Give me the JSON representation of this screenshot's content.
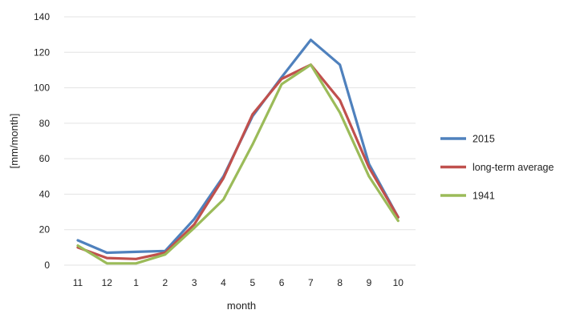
{
  "chart_data": {
    "type": "line",
    "xlabel": "month",
    "ylabel": "[mm/month]",
    "categories": [
      "11",
      "12",
      "1",
      "2",
      "3",
      "4",
      "5",
      "6",
      "7",
      "8",
      "9",
      "10"
    ],
    "ylim": [
      0,
      140
    ],
    "yticks": [
      "0",
      "20",
      "40",
      "60",
      "80",
      "100",
      "120",
      "140"
    ],
    "grid": true,
    "legend_position": "right",
    "series": [
      {
        "name": "2015",
        "color": "#4f81bd",
        "values": [
          14,
          7,
          7.5,
          8,
          26,
          50,
          84,
          106,
          127,
          113,
          57,
          27
        ]
      },
      {
        "name": "long-term average",
        "color": "#c0504d",
        "values": [
          10,
          4,
          3.5,
          7,
          23,
          49,
          85,
          105,
          113,
          93,
          55,
          27
        ]
      },
      {
        "name": "1941",
        "color": "#9bbb59",
        "values": [
          11,
          1,
          1,
          6,
          21,
          37,
          68,
          102,
          113,
          86,
          50,
          25
        ]
      }
    ]
  }
}
